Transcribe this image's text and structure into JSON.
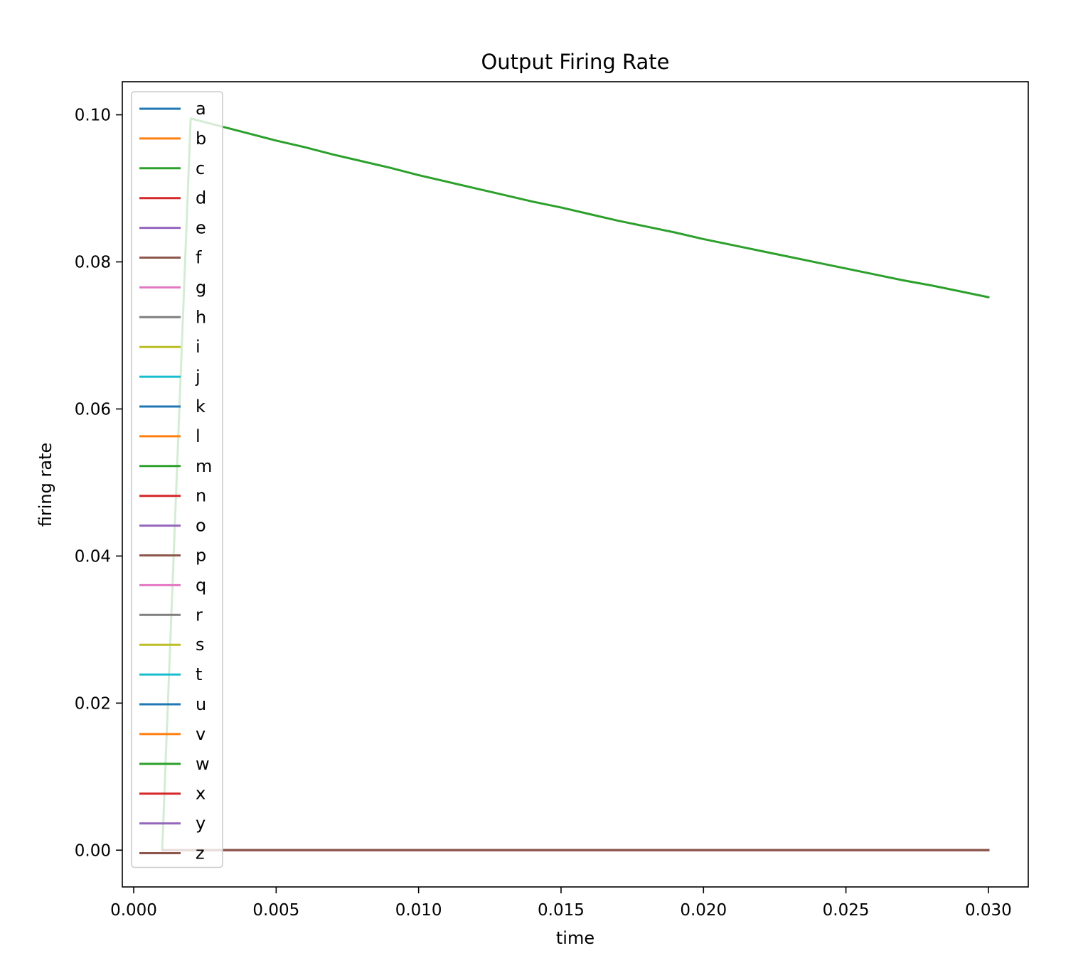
{
  "chart_data": {
    "type": "line",
    "title": "Output Firing Rate",
    "xlabel": "time",
    "ylabel": "firing rate",
    "xlim": [
      -0.0004,
      0.0314
    ],
    "ylim": [
      -0.005,
      0.1045
    ],
    "xticks": [
      0.0,
      0.005,
      0.01,
      0.015,
      0.02,
      0.025,
      0.03
    ],
    "xtick_labels": [
      "0.000",
      "0.005",
      "0.010",
      "0.015",
      "0.020",
      "0.025",
      "0.030"
    ],
    "yticks": [
      0.0,
      0.02,
      0.04,
      0.06,
      0.08,
      0.1
    ],
    "ytick_labels": [
      "0.00",
      "0.02",
      "0.04",
      "0.06",
      "0.08",
      "0.10"
    ],
    "grid": false,
    "legend_position": "upper-left",
    "x": [
      0.001,
      0.002,
      0.003,
      0.004,
      0.005,
      0.006,
      0.007,
      0.008,
      0.009,
      0.01,
      0.011,
      0.012,
      0.013,
      0.014,
      0.015,
      0.016,
      0.017,
      0.018,
      0.019,
      0.02,
      0.021,
      0.022,
      0.023,
      0.024,
      0.025,
      0.026,
      0.027,
      0.028,
      0.029,
      0.03
    ],
    "series": [
      {
        "name": "a",
        "color": "#1f77b4",
        "values": [
          0,
          0,
          0,
          0,
          0,
          0,
          0,
          0,
          0,
          0,
          0,
          0,
          0,
          0,
          0,
          0,
          0,
          0,
          0,
          0,
          0,
          0,
          0,
          0,
          0,
          0,
          0,
          0,
          0,
          0
        ]
      },
      {
        "name": "b",
        "color": "#ff7f0e",
        "values": [
          0,
          0,
          0,
          0,
          0,
          0,
          0,
          0,
          0,
          0,
          0,
          0,
          0,
          0,
          0,
          0,
          0,
          0,
          0,
          0,
          0,
          0,
          0,
          0,
          0,
          0,
          0,
          0,
          0,
          0
        ]
      },
      {
        "name": "c",
        "color": "#2ca02c",
        "values": [
          0,
          0.0995,
          0.0985,
          0.0975,
          0.0965,
          0.0956,
          0.0946,
          0.0937,
          0.0928,
          0.0918,
          0.0909,
          0.09,
          0.0891,
          0.0882,
          0.0874,
          0.0865,
          0.0856,
          0.0848,
          0.084,
          0.0831,
          0.0823,
          0.0815,
          0.0807,
          0.0799,
          0.0791,
          0.0783,
          0.0775,
          0.0768,
          0.076,
          0.0752
        ]
      },
      {
        "name": "d",
        "color": "#d62728",
        "values": [
          0,
          0,
          0,
          0,
          0,
          0,
          0,
          0,
          0,
          0,
          0,
          0,
          0,
          0,
          0,
          0,
          0,
          0,
          0,
          0,
          0,
          0,
          0,
          0,
          0,
          0,
          0,
          0,
          0,
          0
        ]
      },
      {
        "name": "e",
        "color": "#9467bd",
        "values": [
          0,
          0,
          0,
          0,
          0,
          0,
          0,
          0,
          0,
          0,
          0,
          0,
          0,
          0,
          0,
          0,
          0,
          0,
          0,
          0,
          0,
          0,
          0,
          0,
          0,
          0,
          0,
          0,
          0,
          0
        ]
      },
      {
        "name": "f",
        "color": "#8c564b",
        "values": [
          0,
          0,
          0,
          0,
          0,
          0,
          0,
          0,
          0,
          0,
          0,
          0,
          0,
          0,
          0,
          0,
          0,
          0,
          0,
          0,
          0,
          0,
          0,
          0,
          0,
          0,
          0,
          0,
          0,
          0
        ]
      },
      {
        "name": "g",
        "color": "#e377c2",
        "values": [
          0,
          0,
          0,
          0,
          0,
          0,
          0,
          0,
          0,
          0,
          0,
          0,
          0,
          0,
          0,
          0,
          0,
          0,
          0,
          0,
          0,
          0,
          0,
          0,
          0,
          0,
          0,
          0,
          0,
          0
        ]
      },
      {
        "name": "h",
        "color": "#7f7f7f",
        "values": [
          0,
          0,
          0,
          0,
          0,
          0,
          0,
          0,
          0,
          0,
          0,
          0,
          0,
          0,
          0,
          0,
          0,
          0,
          0,
          0,
          0,
          0,
          0,
          0,
          0,
          0,
          0,
          0,
          0,
          0
        ]
      },
      {
        "name": "i",
        "color": "#bcbd22",
        "values": [
          0,
          0,
          0,
          0,
          0,
          0,
          0,
          0,
          0,
          0,
          0,
          0,
          0,
          0,
          0,
          0,
          0,
          0,
          0,
          0,
          0,
          0,
          0,
          0,
          0,
          0,
          0,
          0,
          0,
          0
        ]
      },
      {
        "name": "j",
        "color": "#17becf",
        "values": [
          0,
          0,
          0,
          0,
          0,
          0,
          0,
          0,
          0,
          0,
          0,
          0,
          0,
          0,
          0,
          0,
          0,
          0,
          0,
          0,
          0,
          0,
          0,
          0,
          0,
          0,
          0,
          0,
          0,
          0
        ]
      },
      {
        "name": "k",
        "color": "#1f77b4",
        "values": [
          0,
          0,
          0,
          0,
          0,
          0,
          0,
          0,
          0,
          0,
          0,
          0,
          0,
          0,
          0,
          0,
          0,
          0,
          0,
          0,
          0,
          0,
          0,
          0,
          0,
          0,
          0,
          0,
          0,
          0
        ]
      },
      {
        "name": "l",
        "color": "#ff7f0e",
        "values": [
          0,
          0,
          0,
          0,
          0,
          0,
          0,
          0,
          0,
          0,
          0,
          0,
          0,
          0,
          0,
          0,
          0,
          0,
          0,
          0,
          0,
          0,
          0,
          0,
          0,
          0,
          0,
          0,
          0,
          0
        ]
      },
      {
        "name": "m",
        "color": "#2ca02c",
        "values": [
          0,
          0,
          0,
          0,
          0,
          0,
          0,
          0,
          0,
          0,
          0,
          0,
          0,
          0,
          0,
          0,
          0,
          0,
          0,
          0,
          0,
          0,
          0,
          0,
          0,
          0,
          0,
          0,
          0,
          0
        ]
      },
      {
        "name": "n",
        "color": "#d62728",
        "values": [
          0,
          0,
          0,
          0,
          0,
          0,
          0,
          0,
          0,
          0,
          0,
          0,
          0,
          0,
          0,
          0,
          0,
          0,
          0,
          0,
          0,
          0,
          0,
          0,
          0,
          0,
          0,
          0,
          0,
          0
        ]
      },
      {
        "name": "o",
        "color": "#9467bd",
        "values": [
          0,
          0,
          0,
          0,
          0,
          0,
          0,
          0,
          0,
          0,
          0,
          0,
          0,
          0,
          0,
          0,
          0,
          0,
          0,
          0,
          0,
          0,
          0,
          0,
          0,
          0,
          0,
          0,
          0,
          0
        ]
      },
      {
        "name": "p",
        "color": "#8c564b",
        "values": [
          0,
          0,
          0,
          0,
          0,
          0,
          0,
          0,
          0,
          0,
          0,
          0,
          0,
          0,
          0,
          0,
          0,
          0,
          0,
          0,
          0,
          0,
          0,
          0,
          0,
          0,
          0,
          0,
          0,
          0
        ]
      },
      {
        "name": "q",
        "color": "#e377c2",
        "values": [
          0,
          0,
          0,
          0,
          0,
          0,
          0,
          0,
          0,
          0,
          0,
          0,
          0,
          0,
          0,
          0,
          0,
          0,
          0,
          0,
          0,
          0,
          0,
          0,
          0,
          0,
          0,
          0,
          0,
          0
        ]
      },
      {
        "name": "r",
        "color": "#7f7f7f",
        "values": [
          0,
          0,
          0,
          0,
          0,
          0,
          0,
          0,
          0,
          0,
          0,
          0,
          0,
          0,
          0,
          0,
          0,
          0,
          0,
          0,
          0,
          0,
          0,
          0,
          0,
          0,
          0,
          0,
          0,
          0
        ]
      },
      {
        "name": "s",
        "color": "#bcbd22",
        "values": [
          0,
          0,
          0,
          0,
          0,
          0,
          0,
          0,
          0,
          0,
          0,
          0,
          0,
          0,
          0,
          0,
          0,
          0,
          0,
          0,
          0,
          0,
          0,
          0,
          0,
          0,
          0,
          0,
          0,
          0
        ]
      },
      {
        "name": "t",
        "color": "#17becf",
        "values": [
          0,
          0,
          0,
          0,
          0,
          0,
          0,
          0,
          0,
          0,
          0,
          0,
          0,
          0,
          0,
          0,
          0,
          0,
          0,
          0,
          0,
          0,
          0,
          0,
          0,
          0,
          0,
          0,
          0,
          0
        ]
      },
      {
        "name": "u",
        "color": "#1f77b4",
        "values": [
          0,
          0,
          0,
          0,
          0,
          0,
          0,
          0,
          0,
          0,
          0,
          0,
          0,
          0,
          0,
          0,
          0,
          0,
          0,
          0,
          0,
          0,
          0,
          0,
          0,
          0,
          0,
          0,
          0,
          0
        ]
      },
      {
        "name": "v",
        "color": "#ff7f0e",
        "values": [
          0,
          0,
          0,
          0,
          0,
          0,
          0,
          0,
          0,
          0,
          0,
          0,
          0,
          0,
          0,
          0,
          0,
          0,
          0,
          0,
          0,
          0,
          0,
          0,
          0,
          0,
          0,
          0,
          0,
          0
        ]
      },
      {
        "name": "w",
        "color": "#2ca02c",
        "values": [
          0,
          0,
          0,
          0,
          0,
          0,
          0,
          0,
          0,
          0,
          0,
          0,
          0,
          0,
          0,
          0,
          0,
          0,
          0,
          0,
          0,
          0,
          0,
          0,
          0,
          0,
          0,
          0,
          0,
          0
        ]
      },
      {
        "name": "x",
        "color": "#d62728",
        "values": [
          0,
          0,
          0,
          0,
          0,
          0,
          0,
          0,
          0,
          0,
          0,
          0,
          0,
          0,
          0,
          0,
          0,
          0,
          0,
          0,
          0,
          0,
          0,
          0,
          0,
          0,
          0,
          0,
          0,
          0
        ]
      },
      {
        "name": "y",
        "color": "#9467bd",
        "values": [
          0,
          0,
          0,
          0,
          0,
          0,
          0,
          0,
          0,
          0,
          0,
          0,
          0,
          0,
          0,
          0,
          0,
          0,
          0,
          0,
          0,
          0,
          0,
          0,
          0,
          0,
          0,
          0,
          0,
          0
        ]
      },
      {
        "name": "z",
        "color": "#8c564b",
        "values": [
          0,
          0,
          0,
          0,
          0,
          0,
          0,
          0,
          0,
          0,
          0,
          0,
          0,
          0,
          0,
          0,
          0,
          0,
          0,
          0,
          0,
          0,
          0,
          0,
          0,
          0,
          0,
          0,
          0,
          0
        ]
      }
    ]
  }
}
